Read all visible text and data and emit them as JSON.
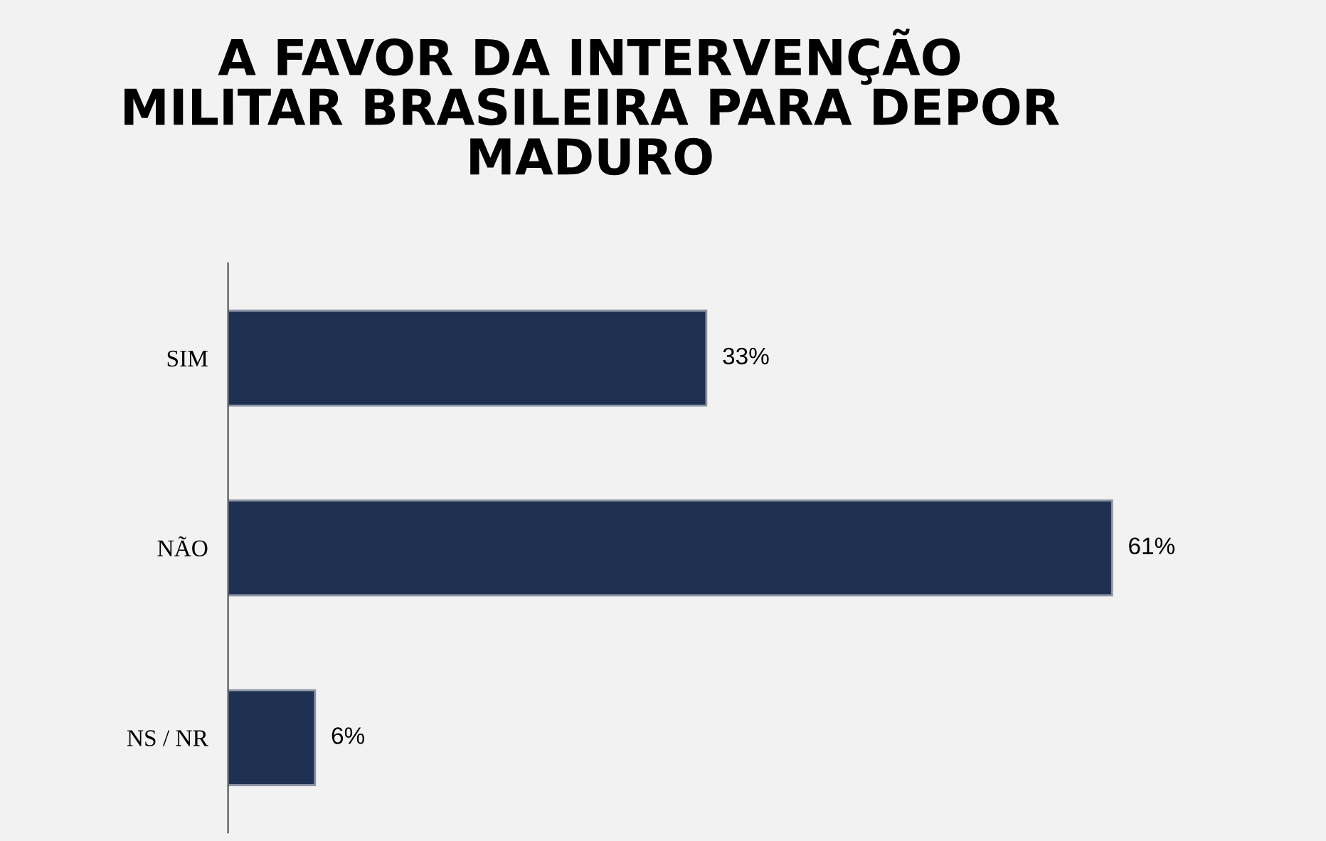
{
  "chart_data": {
    "type": "bar",
    "orientation": "horizontal",
    "title": "A FAVOR DA INTERVENÇÃO\nMILITAR BRASILEIRA PARA DEPOR\nMADURO",
    "categories": [
      "SIM",
      "NÃO",
      "NS / NR"
    ],
    "values": [
      33,
      61,
      6
    ],
    "value_labels": [
      "33%",
      "61%",
      "6%"
    ],
    "color": "#1f3050",
    "grid": false,
    "legend": false
  }
}
